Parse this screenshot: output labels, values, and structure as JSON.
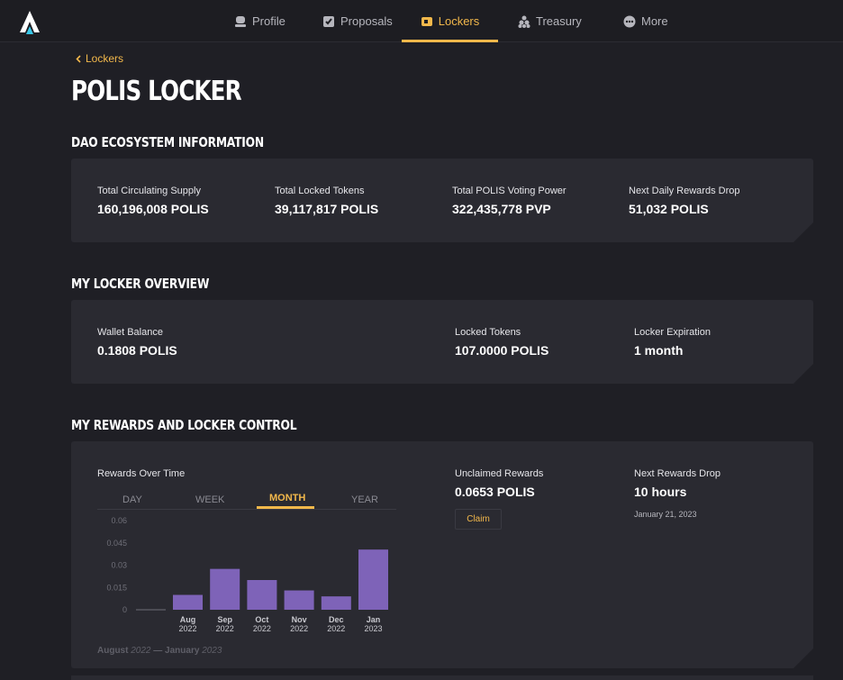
{
  "nav": {
    "items": [
      {
        "label": "Profile",
        "icon": "profile-icon"
      },
      {
        "label": "Proposals",
        "icon": "proposals-icon"
      },
      {
        "label": "Lockers",
        "icon": "lockers-icon"
      },
      {
        "label": "Treasury",
        "icon": "treasury-icon"
      },
      {
        "label": "More",
        "icon": "more-icon"
      }
    ],
    "active": "Lockers"
  },
  "breadcrumb": {
    "back_label": "Lockers"
  },
  "page": {
    "title": "POLIS LOCKER"
  },
  "ecosystem": {
    "title": "DAO ECOSYSTEM INFORMATION",
    "stats": [
      {
        "label": "Total Circulating Supply",
        "value": "160,196,008 POLIS"
      },
      {
        "label": "Total Locked Tokens",
        "value": "39,117,817 POLIS"
      },
      {
        "label": "Total POLIS Voting Power",
        "value": "322,435,778 PVP"
      },
      {
        "label": "Next Daily Rewards Drop",
        "value": "51,032 POLIS"
      }
    ]
  },
  "overview": {
    "title": "MY LOCKER OVERVIEW",
    "stats": [
      {
        "label": "Wallet Balance",
        "value": "0.1808 POLIS"
      },
      {
        "label": "Locked Tokens",
        "value": "107.0000 POLIS"
      },
      {
        "label": "Locker Expiration",
        "value": "1 month"
      }
    ]
  },
  "rewards": {
    "title": "MY REWARDS AND LOCKER CONTROL",
    "chart_label": "Rewards Over Time",
    "tabs": [
      "DAY",
      "WEEK",
      "MONTH",
      "YEAR"
    ],
    "active_tab": "MONTH",
    "unclaimed_label": "Unclaimed Rewards",
    "unclaimed_value": "0.0653 POLIS",
    "claim_label": "Claim",
    "next_drop_label": "Next Rewards Drop",
    "next_drop_value": "10 hours",
    "next_drop_date": "January 21, 2023",
    "range_start": "August",
    "range_start_year": "2022",
    "range_dash": "—",
    "range_end": "January",
    "range_end_year": "2023"
  },
  "colors": {
    "accent": "#f2b84b",
    "bar": "#7e63b8",
    "background": "#1f1f25",
    "card": "#2a2a31"
  },
  "chart_data": {
    "type": "bar",
    "categories": [
      [
        "Aug",
        "2022"
      ],
      [
        "Sep",
        "2022"
      ],
      [
        "Oct",
        "2022"
      ],
      [
        "Nov",
        "2022"
      ],
      [
        "Dec",
        "2022"
      ],
      [
        "Jan",
        "2023"
      ]
    ],
    "values": [
      0.01,
      0.0275,
      0.02,
      0.013,
      0.009,
      0.0405
    ],
    "ylim": [
      0,
      0.06
    ],
    "yticks": [
      "0",
      "0.015",
      "0.03",
      "0.045",
      "0.06"
    ]
  }
}
